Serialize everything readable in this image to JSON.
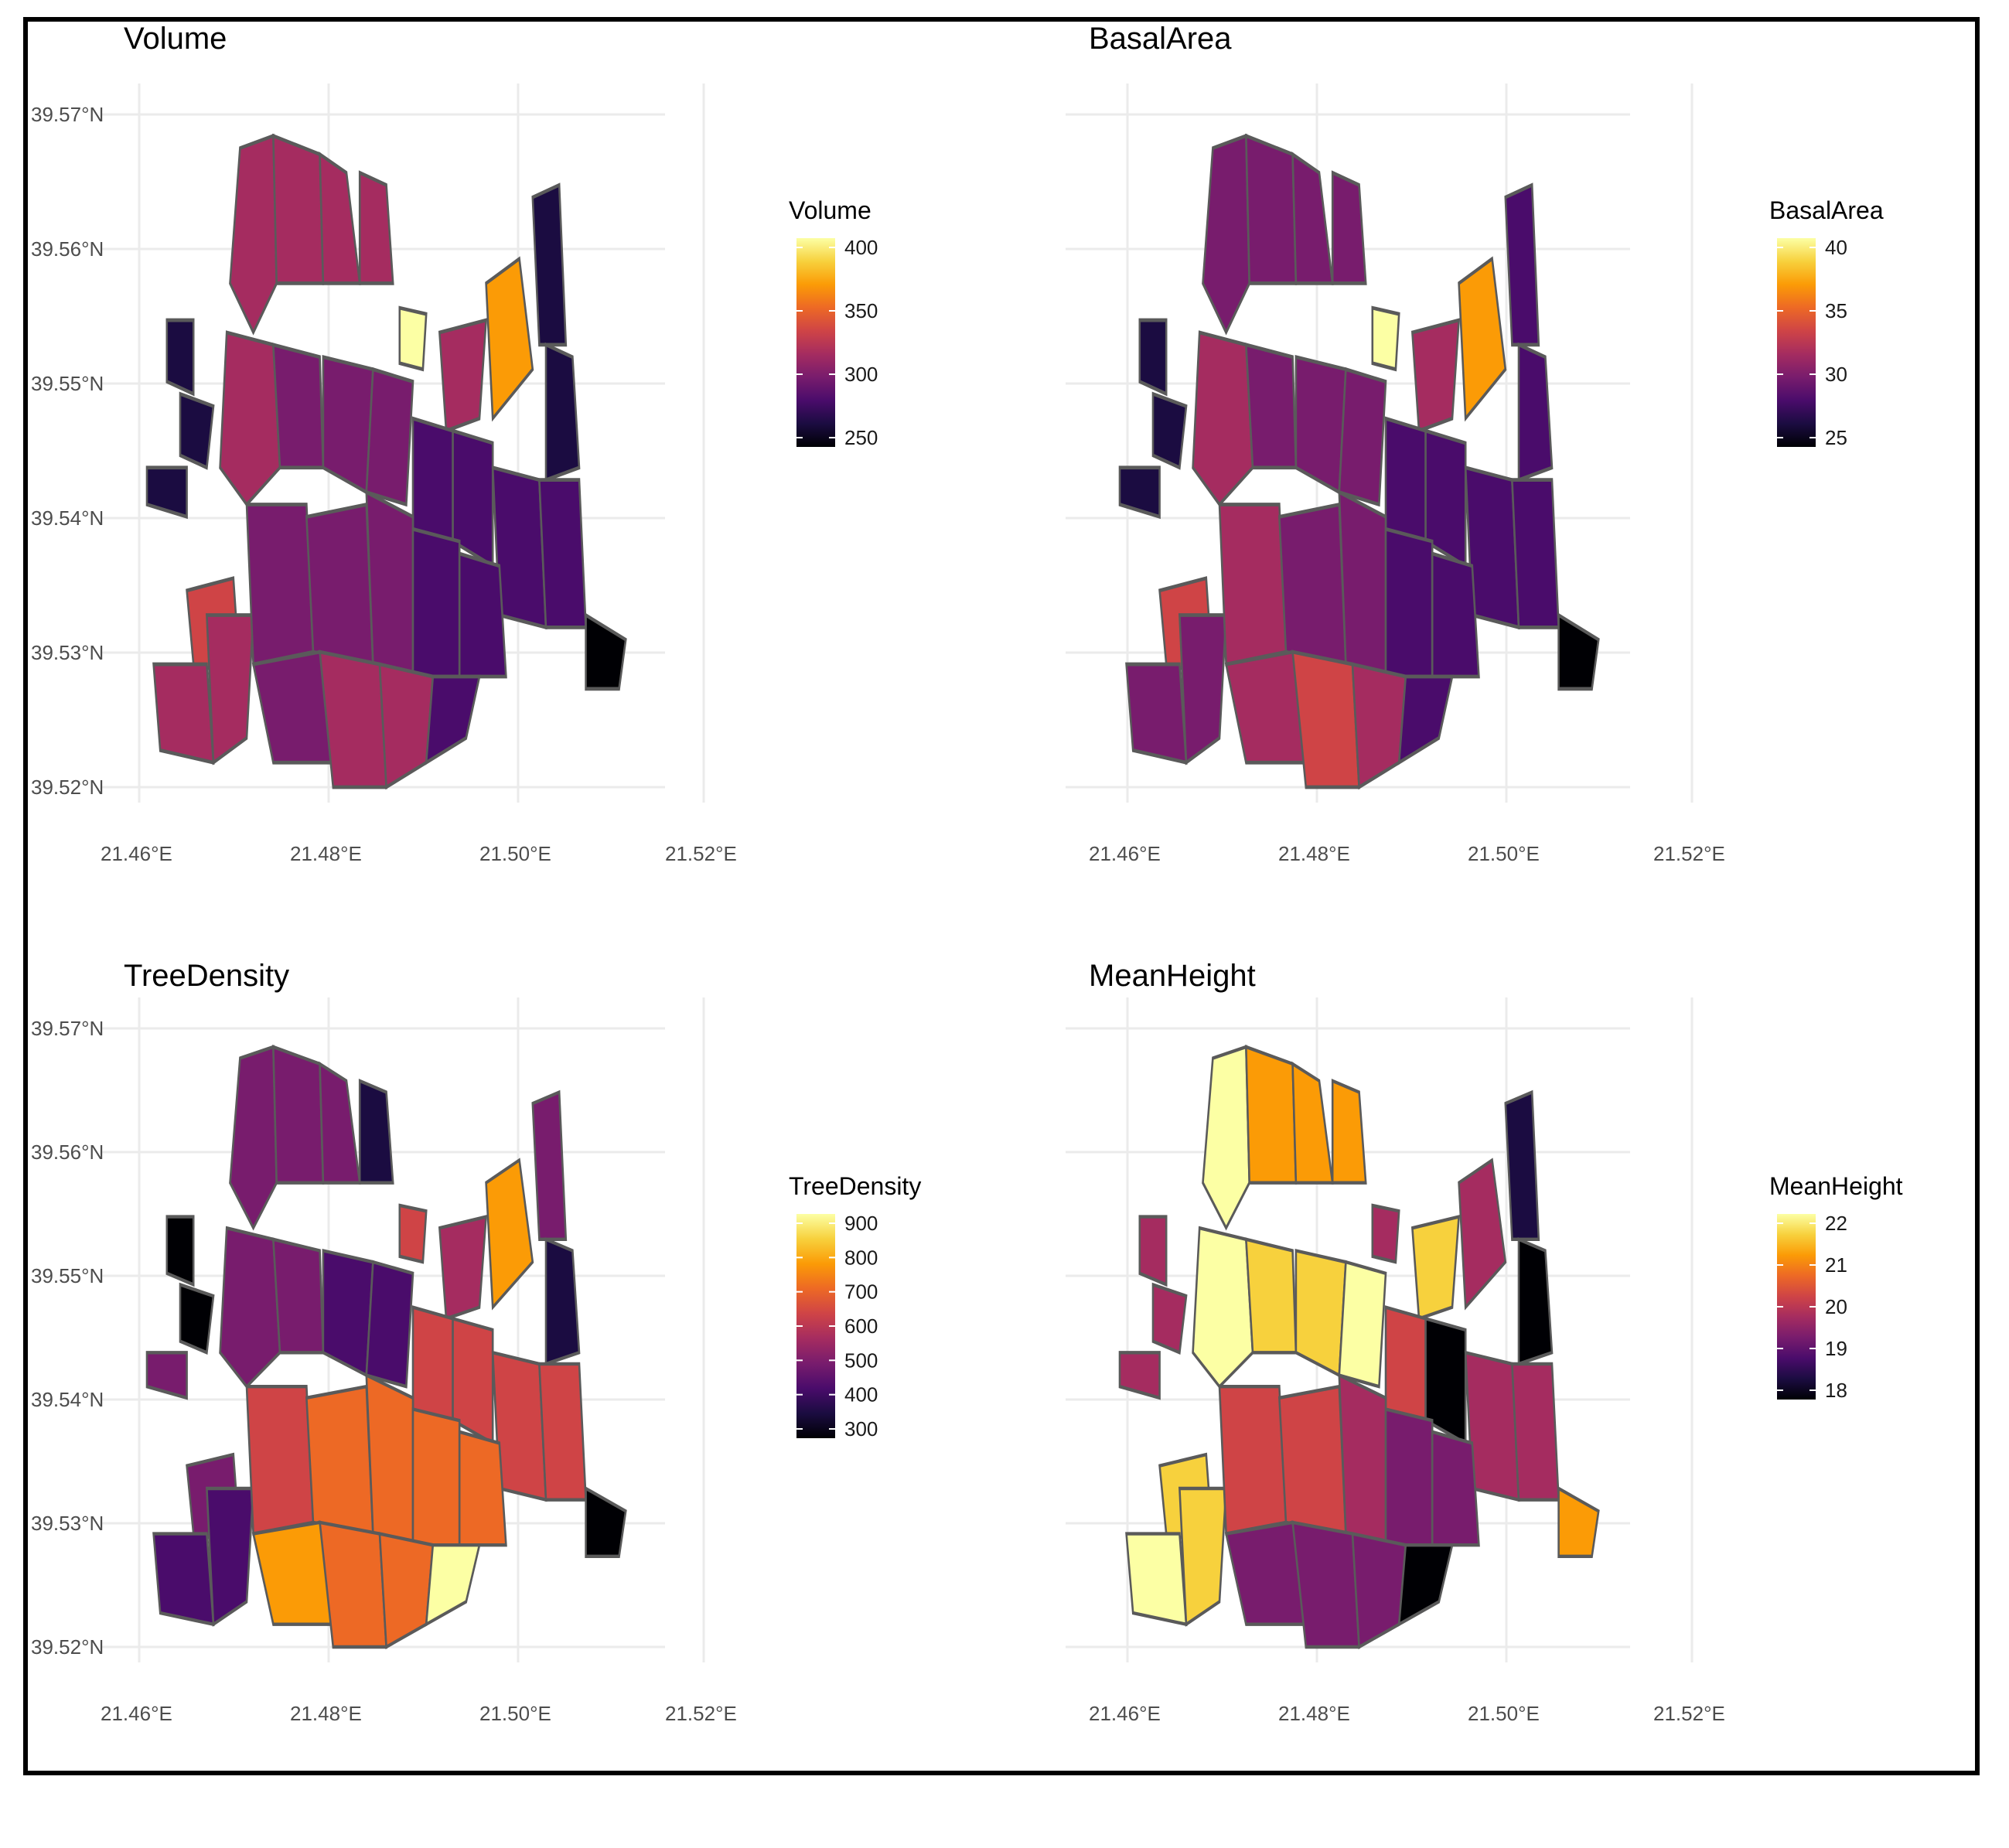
{
  "panels": [
    {
      "id": "volume",
      "title": "Volume",
      "legend_title": "Volume",
      "legend_ticks": [
        "400",
        "350",
        "300",
        "250"
      ],
      "y_ticks": [
        "39.57°N",
        "39.56°N",
        "39.55°N",
        "39.54°N",
        "39.53°N",
        "39.52°N"
      ],
      "x_ticks": [
        "21.46°E",
        "21.48°E",
        "21.50°E",
        "21.52°E"
      ]
    },
    {
      "id": "basalarea",
      "title": "BasalArea",
      "legend_title": "BasalArea",
      "legend_ticks": [
        "40",
        "35",
        "30",
        "25"
      ],
      "y_ticks": [],
      "x_ticks": [
        "21.46°E",
        "21.48°E",
        "21.50°E",
        "21.52°E"
      ]
    },
    {
      "id": "treedensity",
      "title": "TreeDensity",
      "legend_title": "TreeDensity",
      "legend_ticks": [
        "900",
        "800",
        "700",
        "600",
        "500",
        "400",
        "300"
      ],
      "y_ticks": [
        "39.57°N",
        "39.56°N",
        "39.55°N",
        "39.54°N",
        "39.53°N",
        "39.52°N"
      ],
      "x_ticks": [
        "21.46°E",
        "21.48°E",
        "21.50°E",
        "21.52°E"
      ]
    },
    {
      "id": "meanheight",
      "title": "MeanHeight",
      "legend_title": "MeanHeight",
      "legend_ticks": [
        "22",
        "21",
        "20",
        "19",
        "18"
      ],
      "y_ticks": [],
      "x_ticks": [
        "21.46°E",
        "21.48°E",
        "21.50°E",
        "21.52°E"
      ]
    }
  ],
  "colors": {
    "inferno": [
      "#000004",
      "#1b0c41",
      "#4a0c6b",
      "#781c6d",
      "#a52c60",
      "#cf4446",
      "#ed6925",
      "#fb9b06",
      "#f7d13d",
      "#fcffa4"
    ],
    "outline": "#5a5a5a",
    "grid": "#ebebeb"
  }
}
